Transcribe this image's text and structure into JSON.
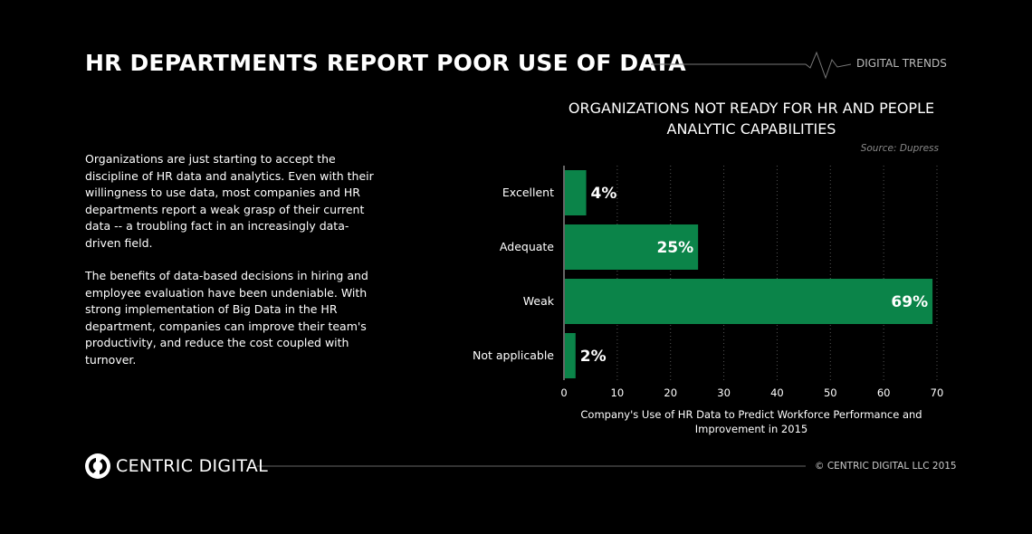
{
  "header": {
    "title": "HR DEPARTMENTS REPORT POOR USE OF DATA",
    "brand_tag": "DIGITAL TRENDS"
  },
  "body": {
    "paragraphs": [
      "Organizations are just starting to accept the discipline of HR data and analytics. Even with their willingness to use data, most companies and HR departments report a weak grasp of their current data -- a troubling fact in an increasingly data-driven field.",
      "The benefits of data-based decisions in hiring and employee evaluation have been undeniable. With strong implementation of Big Data in the HR department, companies can improve their team's productivity, and reduce the cost coupled with turnover."
    ]
  },
  "chart_data": {
    "type": "bar",
    "orientation": "horizontal",
    "title": "ORGANIZATIONS NOT READY FOR HR AND PEOPLE ANALYTIC CAPABILITIES",
    "source": "Source: Dupress",
    "categories": [
      "Excellent",
      "Adequate",
      "Weak",
      "Not applicable"
    ],
    "values": [
      4,
      25,
      69,
      2
    ],
    "data_labels": [
      "4%",
      "25%",
      "69%",
      "2%"
    ],
    "xlabel": "Company's Use of HR Data to Predict Workforce Performance and Improvement in 2015",
    "xlim": [
      0,
      70
    ],
    "xticks": [
      0,
      10,
      20,
      30,
      40,
      50,
      60,
      70
    ],
    "grid": "vertical dotted",
    "bar_color": "#0b8449"
  },
  "footer": {
    "logo_text": "CENTRIC DIGITAL",
    "copyright": "© CENTRIC DIGITAL LLC 2015"
  }
}
